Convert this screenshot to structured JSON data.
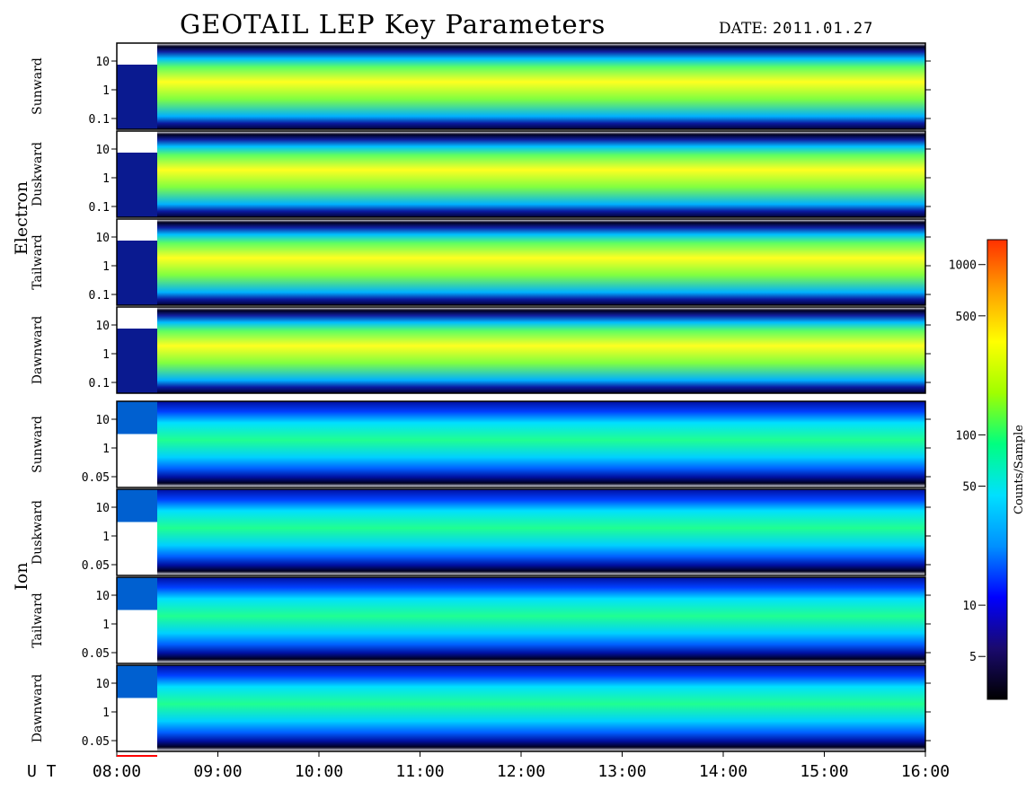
{
  "header": {
    "title": "GEOTAIL LEP Key Parameters",
    "date_label": "DATE:",
    "date_value": "2011.01.27"
  },
  "chart_data": {
    "type": "heatmap",
    "title": "GEOTAIL LEP Key Parameters",
    "x_axis_label": "U T",
    "x_ticks": [
      "08:00",
      "09:00",
      "10:00",
      "11:00",
      "12:00",
      "13:00",
      "14:00",
      "15:00",
      "16:00"
    ],
    "x_range_hours": [
      8,
      16
    ],
    "groups": [
      {
        "name": "Electron",
        "y_scale": "log",
        "y_ticks": [
          "10",
          "1",
          "0.1"
        ],
        "panels": [
          "Sunward",
          "Duskward",
          "Tailward",
          "Dawnward"
        ]
      },
      {
        "name": "Ion",
        "y_scale": "log",
        "y_ticks": [
          "10",
          "1",
          "0.05"
        ],
        "panels": [
          "Sunward",
          "Duskward",
          "Tailward",
          "Dawnward"
        ]
      }
    ],
    "colorbar": {
      "label": "Counts/Sample",
      "scale": "log",
      "ticks": [
        "1000",
        "500",
        "100",
        "50",
        "10",
        "5"
      ],
      "tick_values": [
        1000,
        500,
        100,
        50,
        10,
        5
      ],
      "range": [
        2.8,
        1400
      ],
      "colors": [
        "#000000",
        "#1a0a6e",
        "#0000ff",
        "#0090ff",
        "#00e0ff",
        "#00ff80",
        "#a0ff00",
        "#ffff00",
        "#ffa000",
        "#ff3000"
      ]
    }
  }
}
